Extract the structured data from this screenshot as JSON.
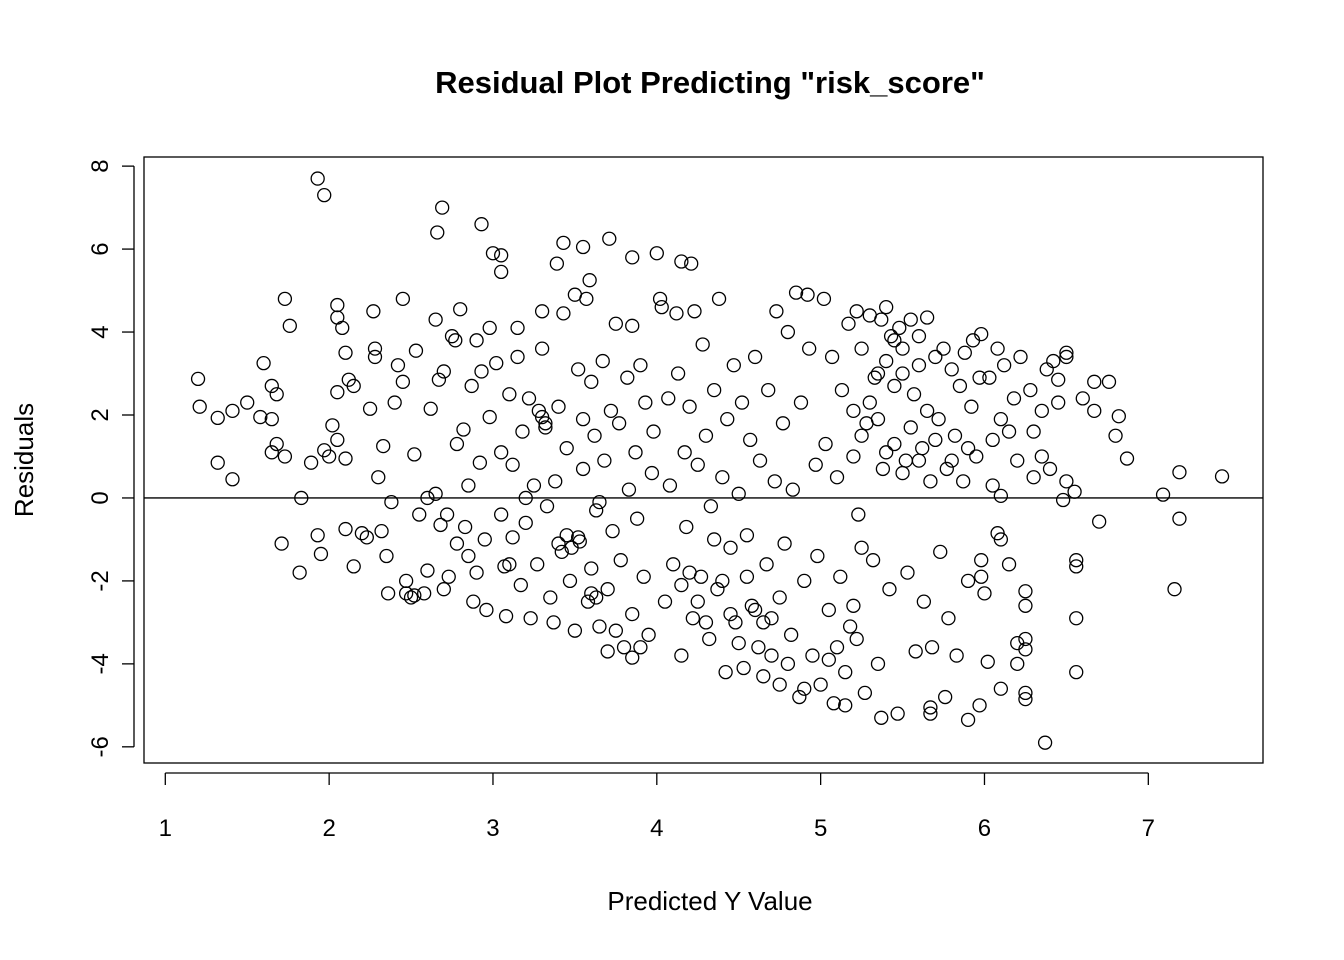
{
  "chart_data": {
    "type": "scatter",
    "title": "Residual Plot Predicting \"risk_score\"",
    "xlabel": "Predicted Y Value",
    "ylabel": "Residuals",
    "xlim": [
      0.87,
      7.7
    ],
    "ylim": [
      -6.39,
      8.22
    ],
    "xticks": [
      1,
      2,
      3,
      4,
      5,
      6,
      7
    ],
    "yticks": [
      -6,
      -4,
      -2,
      0,
      2,
      4,
      6,
      8
    ],
    "reference_line_y": 0,
    "grid": false,
    "marker": "open-circle",
    "points": [
      [
        1.93,
        7.7
      ],
      [
        1.97,
        7.3
      ],
      [
        2.69,
        7.0
      ],
      [
        2.66,
        6.4
      ],
      [
        2.93,
        6.6
      ],
      [
        3.0,
        5.9
      ],
      [
        3.05,
        5.85
      ],
      [
        3.05,
        5.45
      ],
      [
        3.43,
        6.15
      ],
      [
        3.55,
        6.05
      ],
      [
        3.71,
        6.25
      ],
      [
        4.0,
        5.9
      ],
      [
        4.15,
        5.7
      ],
      [
        4.21,
        5.65
      ],
      [
        3.85,
        5.8
      ],
      [
        3.39,
        5.65
      ],
      [
        3.59,
        5.25
      ],
      [
        1.2,
        2.87
      ],
      [
        1.21,
        2.2
      ],
      [
        1.32,
        1.93
      ],
      [
        1.32,
        0.85
      ],
      [
        1.41,
        0.45
      ],
      [
        1.41,
        2.1
      ],
      [
        1.5,
        2.3
      ],
      [
        1.58,
        1.95
      ],
      [
        1.6,
        3.25
      ],
      [
        1.65,
        2.7
      ],
      [
        1.65,
        1.9
      ],
      [
        1.68,
        2.5
      ],
      [
        1.68,
        1.3
      ],
      [
        1.73,
        4.8
      ],
      [
        1.76,
        4.15
      ],
      [
        1.71,
        -1.1
      ],
      [
        1.82,
        -1.8
      ],
      [
        1.83,
        0.0
      ],
      [
        1.93,
        -0.9
      ],
      [
        1.95,
        -1.35
      ],
      [
        1.65,
        1.1
      ],
      [
        1.73,
        1.0
      ],
      [
        1.89,
        0.85
      ],
      [
        1.97,
        1.15
      ],
      [
        2.0,
        1.0
      ],
      [
        7.09,
        0.08
      ],
      [
        7.19,
        0.62
      ],
      [
        7.19,
        -0.5
      ],
      [
        7.16,
        -2.2
      ],
      [
        7.45,
        0.52
      ],
      [
        6.37,
        -5.9
      ],
      [
        5.9,
        -5.35
      ],
      [
        5.37,
        -5.3
      ],
      [
        6.56,
        -4.2
      ],
      [
        6.56,
        -2.9
      ],
      [
        6.56,
        -1.5
      ],
      [
        6.56,
        -1.65
      ],
      [
        6.7,
        -0.57
      ],
      [
        6.87,
        0.95
      ],
      [
        6.8,
        1.5
      ],
      [
        6.82,
        1.97
      ],
      [
        6.76,
        2.8
      ],
      [
        6.25,
        -4.85
      ],
      [
        6.25,
        -4.7
      ],
      [
        6.25,
        -3.65
      ],
      [
        6.25,
        -3.4
      ],
      [
        6.1,
        -4.6
      ],
      [
        5.97,
        -5.0
      ],
      [
        5.76,
        -4.8
      ],
      [
        5.67,
        -5.2
      ],
      [
        5.67,
        -5.05
      ],
      [
        6.02,
        -3.95
      ],
      [
        6.5,
        3.5
      ],
      [
        6.5,
        3.4
      ],
      [
        6.45,
        2.85
      ],
      [
        6.6,
        2.4
      ],
      [
        6.67,
        2.1
      ],
      [
        6.67,
        2.8
      ],
      [
        6.55,
        0.15
      ],
      [
        6.5,
        0.4
      ],
      [
        6.48,
        -0.05
      ],
      [
        6.4,
        0.7
      ],
      [
        6.3,
        1.6
      ],
      [
        6.2,
        -4.0
      ],
      [
        6.2,
        -3.5
      ],
      [
        6.25,
        -2.6
      ],
      [
        6.25,
        -2.25
      ],
      [
        6.15,
        -1.6
      ],
      [
        6.1,
        -1.0
      ],
      [
        6.08,
        -0.85
      ],
      [
        6.0,
        -2.3
      ],
      [
        5.98,
        -1.5
      ],
      [
        5.98,
        -1.9
      ],
      [
        6.35,
        2.1
      ],
      [
        6.38,
        3.1
      ],
      [
        6.42,
        3.3
      ],
      [
        6.45,
        2.3
      ],
      [
        6.35,
        1.0
      ],
      [
        6.3,
        0.5
      ],
      [
        6.05,
        0.3
      ],
      [
        6.1,
        0.05
      ],
      [
        2.05,
        4.35
      ],
      [
        2.05,
        4.65
      ],
      [
        2.08,
        4.1
      ],
      [
        2.1,
        3.5
      ],
      [
        2.12,
        2.85
      ],
      [
        2.15,
        2.7
      ],
      [
        2.05,
        2.55
      ],
      [
        2.02,
        1.75
      ],
      [
        2.05,
        1.4
      ],
      [
        2.1,
        0.95
      ],
      [
        2.1,
        -0.75
      ],
      [
        2.15,
        -1.65
      ],
      [
        2.2,
        -0.85
      ],
      [
        2.23,
        -0.95
      ],
      [
        2.25,
        2.15
      ],
      [
        2.27,
        4.5
      ],
      [
        2.28,
        3.6
      ],
      [
        2.28,
        3.4
      ],
      [
        2.3,
        0.5
      ],
      [
        2.32,
        -0.8
      ],
      [
        2.33,
        1.25
      ],
      [
        2.35,
        -1.4
      ],
      [
        2.36,
        -2.3
      ],
      [
        2.38,
        -0.1
      ],
      [
        2.4,
        2.3
      ],
      [
        2.42,
        3.2
      ],
      [
        2.45,
        4.8
      ],
      [
        2.45,
        2.8
      ],
      [
        2.47,
        -2.0
      ],
      [
        2.47,
        -2.3
      ],
      [
        2.5,
        -2.4
      ],
      [
        2.52,
        1.05
      ],
      [
        2.53,
        3.55
      ],
      [
        2.55,
        -0.4
      ],
      [
        2.58,
        -2.3
      ],
      [
        2.6,
        0.0
      ],
      [
        2.62,
        2.15
      ],
      [
        2.65,
        4.3
      ],
      [
        2.67,
        2.85
      ],
      [
        2.7,
        3.05
      ],
      [
        2.72,
        -0.4
      ],
      [
        2.73,
        -1.9
      ],
      [
        2.75,
        3.9
      ],
      [
        2.77,
        3.8
      ],
      [
        2.78,
        1.3
      ],
      [
        2.8,
        4.55
      ],
      [
        2.82,
        1.65
      ],
      [
        2.83,
        -0.7
      ],
      [
        2.85,
        -1.4
      ],
      [
        2.87,
        2.7
      ],
      [
        2.88,
        -2.5
      ],
      [
        2.9,
        3.8
      ],
      [
        2.92,
        0.85
      ],
      [
        2.93,
        3.05
      ],
      [
        2.95,
        -1.0
      ],
      [
        2.96,
        -2.7
      ],
      [
        2.98,
        4.1
      ],
      [
        2.98,
        1.95
      ],
      [
        2.6,
        -1.75
      ],
      [
        2.7,
        -2.2
      ],
      [
        2.78,
        -1.1
      ],
      [
        2.85,
        0.3
      ],
      [
        2.65,
        0.1
      ],
      [
        2.52,
        -2.35
      ],
      [
        2.9,
        -1.8
      ],
      [
        2.68,
        -0.65
      ],
      [
        3.02,
        3.25
      ],
      [
        3.05,
        1.1
      ],
      [
        3.05,
        -0.4
      ],
      [
        3.07,
        -1.65
      ],
      [
        3.08,
        -2.85
      ],
      [
        3.1,
        2.5
      ],
      [
        3.12,
        0.8
      ],
      [
        3.12,
        -0.95
      ],
      [
        3.15,
        3.4
      ],
      [
        3.15,
        4.1
      ],
      [
        3.17,
        -2.1
      ],
      [
        3.18,
        1.6
      ],
      [
        3.2,
        -0.6
      ],
      [
        3.22,
        2.4
      ],
      [
        3.23,
        -2.9
      ],
      [
        3.25,
        0.3
      ],
      [
        3.27,
        -1.6
      ],
      [
        3.28,
        2.1
      ],
      [
        3.3,
        4.5
      ],
      [
        3.3,
        3.6
      ],
      [
        3.32,
        1.8
      ],
      [
        3.33,
        -0.2
      ],
      [
        3.35,
        -2.4
      ],
      [
        3.37,
        -3.0
      ],
      [
        3.38,
        0.4
      ],
      [
        3.4,
        2.2
      ],
      [
        3.42,
        -1.3
      ],
      [
        3.43,
        4.45
      ],
      [
        3.45,
        1.2
      ],
      [
        3.45,
        -0.9
      ],
      [
        3.47,
        -2.0
      ],
      [
        3.5,
        -3.2
      ],
      [
        3.5,
        4.9
      ],
      [
        3.52,
        3.1
      ],
      [
        3.53,
        -1.05
      ],
      [
        3.55,
        0.7
      ],
      [
        3.57,
        4.8
      ],
      [
        3.58,
        -2.5
      ],
      [
        3.6,
        2.8
      ],
      [
        3.6,
        -1.7
      ],
      [
        3.62,
        1.5
      ],
      [
        3.63,
        -0.3
      ],
      [
        3.65,
        -3.1
      ],
      [
        3.67,
        3.3
      ],
      [
        3.68,
        0.9
      ],
      [
        3.7,
        -2.2
      ],
      [
        3.72,
        2.1
      ],
      [
        3.73,
        -0.8
      ],
      [
        3.75,
        4.2
      ],
      [
        3.77,
        1.8
      ],
      [
        3.78,
        -1.5
      ],
      [
        3.8,
        -3.6
      ],
      [
        3.82,
        2.9
      ],
      [
        3.83,
        0.2
      ],
      [
        3.85,
        4.15
      ],
      [
        3.85,
        -2.8
      ],
      [
        3.87,
        1.1
      ],
      [
        3.88,
        -0.5
      ],
      [
        3.9,
        3.2
      ],
      [
        3.92,
        -1.9
      ],
      [
        3.93,
        2.3
      ],
      [
        3.95,
        -3.3
      ],
      [
        3.97,
        0.6
      ],
      [
        3.98,
        1.6
      ],
      [
        3.4,
        -1.1
      ],
      [
        3.48,
        -1.2
      ],
      [
        3.52,
        -0.95
      ],
      [
        3.6,
        -2.3
      ],
      [
        3.63,
        -2.4
      ],
      [
        3.7,
        -3.7
      ],
      [
        3.75,
        -3.2
      ],
      [
        3.3,
        1.95
      ],
      [
        3.32,
        1.7
      ],
      [
        3.1,
        -1.6
      ],
      [
        3.2,
        0.0
      ],
      [
        3.55,
        1.9
      ],
      [
        3.65,
        -0.1
      ],
      [
        3.85,
        -3.85
      ],
      [
        3.9,
        -3.6
      ],
      [
        4.02,
        4.8
      ],
      [
        4.03,
        4.6
      ],
      [
        4.05,
        -2.5
      ],
      [
        4.07,
        2.4
      ],
      [
        4.08,
        0.3
      ],
      [
        4.1,
        -1.6
      ],
      [
        4.12,
        4.45
      ],
      [
        4.13,
        3.0
      ],
      [
        4.15,
        -3.8
      ],
      [
        4.17,
        1.1
      ],
      [
        4.18,
        -0.7
      ],
      [
        4.2,
        2.2
      ],
      [
        4.22,
        -2.9
      ],
      [
        4.23,
        4.5
      ],
      [
        4.25,
        0.8
      ],
      [
        4.27,
        -1.9
      ],
      [
        4.28,
        3.7
      ],
      [
        4.3,
        1.5
      ],
      [
        4.32,
        -3.4
      ],
      [
        4.33,
        -0.2
      ],
      [
        4.35,
        2.6
      ],
      [
        4.37,
        -2.2
      ],
      [
        4.38,
        4.8
      ],
      [
        4.4,
        0.5
      ],
      [
        4.42,
        -4.2
      ],
      [
        4.43,
        1.9
      ],
      [
        4.45,
        -1.2
      ],
      [
        4.47,
        3.2
      ],
      [
        4.48,
        -3.0
      ],
      [
        4.5,
        0.1
      ],
      [
        4.52,
        2.3
      ],
      [
        4.53,
        -4.1
      ],
      [
        4.55,
        -0.9
      ],
      [
        4.57,
        1.4
      ],
      [
        4.58,
        -2.6
      ],
      [
        4.6,
        3.4
      ],
      [
        4.62,
        -3.6
      ],
      [
        4.63,
        0.9
      ],
      [
        4.65,
        -4.3
      ],
      [
        4.67,
        -1.6
      ],
      [
        4.68,
        2.6
      ],
      [
        4.7,
        -2.9
      ],
      [
        4.72,
        0.4
      ],
      [
        4.73,
        4.5
      ],
      [
        4.75,
        -4.5
      ],
      [
        4.77,
        1.8
      ],
      [
        4.78,
        -1.1
      ],
      [
        4.8,
        4.0
      ],
      [
        4.82,
        -3.3
      ],
      [
        4.83,
        0.2
      ],
      [
        4.85,
        4.95
      ],
      [
        4.87,
        -4.8
      ],
      [
        4.88,
        2.3
      ],
      [
        4.9,
        -2.0
      ],
      [
        4.92,
        4.9
      ],
      [
        4.93,
        3.6
      ],
      [
        4.95,
        -3.8
      ],
      [
        4.97,
        0.8
      ],
      [
        4.98,
        -1.4
      ],
      [
        4.4,
        -2.0
      ],
      [
        4.45,
        -2.8
      ],
      [
        4.5,
        -3.5
      ],
      [
        4.6,
        -2.7
      ],
      [
        4.65,
        -3.0
      ],
      [
        4.7,
        -3.8
      ],
      [
        4.25,
        -2.5
      ],
      [
        4.3,
        -3.0
      ],
      [
        4.15,
        -2.1
      ],
      [
        4.2,
        -1.8
      ],
      [
        4.35,
        -1.0
      ],
      [
        4.55,
        -1.9
      ],
      [
        4.75,
        -2.4
      ],
      [
        4.8,
        -4.0
      ],
      [
        4.9,
        -4.6
      ],
      [
        5.0,
        -4.5
      ],
      [
        5.02,
        4.8
      ],
      [
        5.03,
        1.3
      ],
      [
        5.05,
        -2.7
      ],
      [
        5.07,
        3.4
      ],
      [
        5.08,
        -4.95
      ],
      [
        5.1,
        0.5
      ],
      [
        5.12,
        -1.9
      ],
      [
        5.13,
        2.6
      ],
      [
        5.15,
        -5.0
      ],
      [
        5.17,
        4.2
      ],
      [
        5.18,
        -3.1
      ],
      [
        5.2,
        1.0
      ],
      [
        5.22,
        4.5
      ],
      [
        5.22,
        -3.4
      ],
      [
        5.23,
        -0.4
      ],
      [
        5.25,
        3.6
      ],
      [
        5.27,
        -4.7
      ],
      [
        5.28,
        1.8
      ],
      [
        5.3,
        4.4
      ],
      [
        5.32,
        -1.5
      ],
      [
        5.33,
        2.9
      ],
      [
        5.35,
        -4.0
      ],
      [
        5.37,
        4.3
      ],
      [
        5.38,
        0.7
      ],
      [
        5.4,
        4.6
      ],
      [
        5.42,
        -2.2
      ],
      [
        5.43,
        3.9
      ],
      [
        5.45,
        1.3
      ],
      [
        5.47,
        -5.2
      ],
      [
        5.48,
        4.1
      ],
      [
        5.5,
        3.6
      ],
      [
        5.52,
        0.9
      ],
      [
        5.53,
        -1.8
      ],
      [
        5.55,
        4.3
      ],
      [
        5.57,
        2.5
      ],
      [
        5.58,
        -3.7
      ],
      [
        5.6,
        3.9
      ],
      [
        5.62,
        1.2
      ],
      [
        5.63,
        -2.5
      ],
      [
        5.65,
        4.35
      ],
      [
        5.67,
        0.4
      ],
      [
        5.68,
        -3.6
      ],
      [
        5.7,
        3.4
      ],
      [
        5.72,
        1.9
      ],
      [
        5.73,
        -1.3
      ],
      [
        5.75,
        3.6
      ],
      [
        5.77,
        0.7
      ],
      [
        5.78,
        -2.9
      ],
      [
        5.8,
        3.1
      ],
      [
        5.82,
        1.5
      ],
      [
        5.83,
        -3.8
      ],
      [
        5.85,
        2.7
      ],
      [
        5.87,
        0.4
      ],
      [
        5.88,
        3.5
      ],
      [
        5.9,
        -2.0
      ],
      [
        5.92,
        2.2
      ],
      [
        5.93,
        3.8
      ],
      [
        5.95,
        1.0
      ],
      [
        5.97,
        2.9
      ],
      [
        5.98,
        3.95
      ],
      [
        5.2,
        2.1
      ],
      [
        5.25,
        1.5
      ],
      [
        5.3,
        2.3
      ],
      [
        5.35,
        1.9
      ],
      [
        5.4,
        1.1
      ],
      [
        5.45,
        2.7
      ],
      [
        5.5,
        0.6
      ],
      [
        5.55,
        1.7
      ],
      [
        5.6,
        0.9
      ],
      [
        5.65,
        2.1
      ],
      [
        5.5,
        3.0
      ],
      [
        5.45,
        3.8
      ],
      [
        5.4,
        3.3
      ],
      [
        5.35,
        3.0
      ],
      [
        5.6,
        3.2
      ],
      [
        5.7,
        1.4
      ],
      [
        5.8,
        0.9
      ],
      [
        5.9,
        1.2
      ],
      [
        5.1,
        -3.6
      ],
      [
        5.15,
        -4.2
      ],
      [
        5.05,
        -3.9
      ],
      [
        5.2,
        -2.6
      ],
      [
        5.25,
        -1.2
      ],
      [
        6.03,
        2.9
      ],
      [
        6.08,
        3.6
      ],
      [
        6.12,
        3.2
      ],
      [
        6.15,
        1.6
      ],
      [
        6.18,
        2.4
      ],
      [
        6.2,
        0.9
      ],
      [
        6.22,
        3.4
      ],
      [
        6.28,
        2.6
      ],
      [
        6.05,
        1.4
      ],
      [
        6.1,
        1.9
      ]
    ]
  }
}
